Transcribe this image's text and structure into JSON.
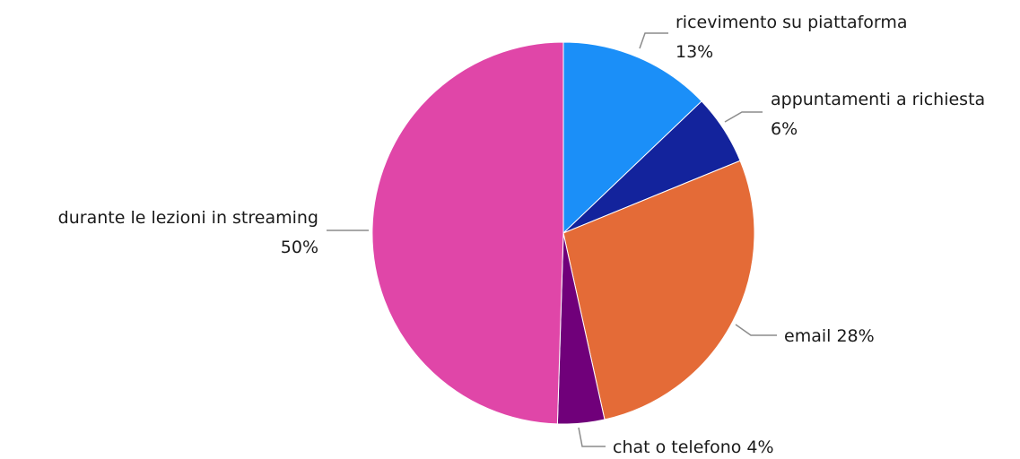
{
  "chart_data": {
    "type": "pie",
    "categories": [
      "ricevimento su piattaforma",
      "appuntamenti a richiesta",
      "email",
      "chat o telefono",
      "durante le lezioni in streaming"
    ],
    "values": [
      13,
      6,
      28,
      4,
      50
    ],
    "percent_labels": [
      "13%",
      "6%",
      "28%",
      "4%",
      "50%"
    ],
    "colors": [
      "#1b8ff8",
      "#13239c",
      "#e46b37",
      "#70007a",
      "#e046a8"
    ],
    "legend": "none",
    "data_labels": "outside, with leader lines"
  }
}
